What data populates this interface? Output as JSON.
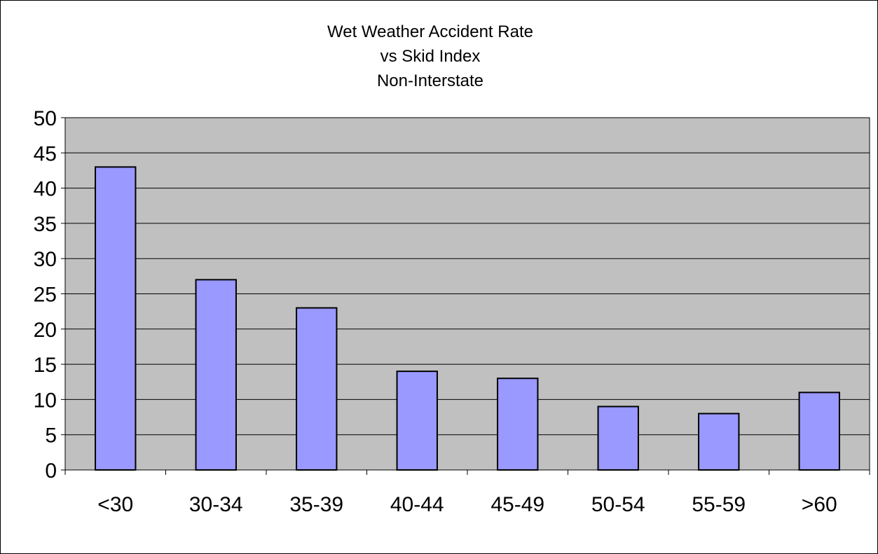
{
  "chart_data": {
    "type": "bar",
    "title_lines": [
      "Wet Weather Accident Rate",
      "vs Skid Index",
      "Non-Interstate"
    ],
    "categories": [
      "<30",
      "30-34",
      "35-39",
      "40-44",
      "45-49",
      "50-54",
      "55-59",
      ">60"
    ],
    "values": [
      43,
      27,
      23,
      14,
      13,
      9,
      8,
      11
    ],
    "xlabel": "",
    "ylabel": "",
    "ylim": [
      0,
      50
    ],
    "yticks": [
      0,
      5,
      10,
      15,
      20,
      25,
      30,
      35,
      40,
      45,
      50
    ],
    "grid": true,
    "legend": "none",
    "colors": {
      "bar_fill": "#9999ff",
      "bar_stroke": "#000000",
      "plot_background": "#c0c0c0",
      "gridline": "#000000",
      "frame": "#000000"
    }
  }
}
